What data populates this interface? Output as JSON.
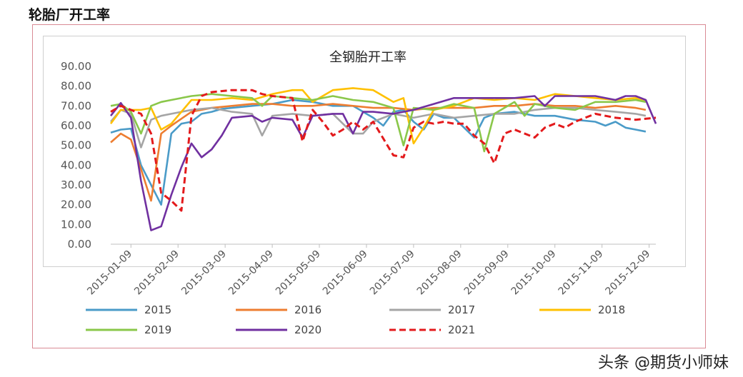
{
  "page": {
    "heading": "轮胎厂开工率",
    "watermark": "头条 @期货小师妹"
  },
  "chart_data": {
    "type": "line",
    "title": "全钢胎开工率",
    "xlabel": "",
    "ylabel": "",
    "ylim": [
      0,
      90
    ],
    "yticks": [
      "0.00",
      "10.00",
      "20.00",
      "30.00",
      "40.00",
      "50.00",
      "60.00",
      "70.00",
      "80.00",
      "90.00"
    ],
    "x_tick_labels": [
      "2015-01-09",
      "2015-02-09",
      "2015-03-09",
      "2015-04-09",
      "2015-05-09",
      "2015-06-09",
      "2015-07-09",
      "2015-08-09",
      "2015-09-09",
      "2015-10-09",
      "2015-11-09",
      "2015-12-09"
    ],
    "grid": false,
    "legend_position": "bottom",
    "series": [
      {
        "name": "2015",
        "color": "#4a9bc8",
        "dashed": false,
        "points": [
          [
            0,
            56.5
          ],
          [
            0.5,
            58
          ],
          [
            1,
            58.5
          ],
          [
            1.5,
            40
          ],
          [
            2,
            30
          ],
          [
            2.5,
            20
          ],
          [
            3,
            56
          ],
          [
            3.5,
            61
          ],
          [
            4,
            62
          ],
          [
            4.5,
            66
          ],
          [
            5,
            67
          ],
          [
            5.5,
            68.5
          ],
          [
            6,
            69
          ],
          [
            7,
            70
          ],
          [
            8,
            71
          ],
          [
            8.5,
            72
          ],
          [
            9,
            73
          ],
          [
            10,
            72
          ],
          [
            11,
            70
          ],
          [
            12,
            70
          ],
          [
            13,
            64
          ],
          [
            13.5,
            60
          ],
          [
            14,
            67
          ],
          [
            14.5,
            68
          ],
          [
            15,
            62
          ],
          [
            15.5,
            58
          ],
          [
            16,
            66
          ],
          [
            16.5,
            64
          ],
          [
            17,
            64
          ],
          [
            18,
            54
          ],
          [
            18.5,
            64
          ],
          [
            19,
            66
          ],
          [
            20,
            67
          ],
          [
            21,
            65
          ],
          [
            22,
            65
          ],
          [
            23,
            63
          ],
          [
            24,
            62
          ],
          [
            24.5,
            60
          ],
          [
            25,
            62
          ],
          [
            25.5,
            59
          ],
          [
            26,
            58
          ],
          [
            26.5,
            57
          ]
        ]
      },
      {
        "name": "2016",
        "color": "#ed7d31",
        "dashed": false,
        "points": [
          [
            0,
            51.5
          ],
          [
            0.5,
            56
          ],
          [
            1,
            53
          ],
          [
            1.5,
            38
          ],
          [
            2,
            22
          ],
          [
            2.5,
            56
          ],
          [
            3,
            60
          ],
          [
            4,
            67
          ],
          [
            5,
            69
          ],
          [
            6,
            70
          ],
          [
            7,
            71
          ],
          [
            8,
            71
          ],
          [
            9,
            70
          ],
          [
            10,
            70
          ],
          [
            11,
            71
          ],
          [
            12,
            70
          ],
          [
            13,
            69
          ],
          [
            14,
            69
          ],
          [
            15,
            68
          ],
          [
            16,
            69
          ],
          [
            17,
            69
          ],
          [
            18,
            69
          ],
          [
            19,
            70
          ],
          [
            20,
            70
          ],
          [
            21,
            71
          ],
          [
            22,
            70
          ],
          [
            23,
            70
          ],
          [
            24,
            69
          ],
          [
            25,
            70
          ],
          [
            26,
            69
          ],
          [
            26.5,
            68
          ]
        ]
      },
      {
        "name": "2017",
        "color": "#a5a5a5",
        "dashed": false,
        "points": [
          [
            0,
            62
          ],
          [
            0.5,
            68
          ],
          [
            1,
            66
          ],
          [
            1.5,
            49
          ],
          [
            2,
            63
          ],
          [
            2.5,
            65
          ],
          [
            3,
            66
          ],
          [
            4,
            68
          ],
          [
            5,
            69
          ],
          [
            6,
            67
          ],
          [
            7,
            66
          ],
          [
            7.5,
            55
          ],
          [
            8,
            65
          ],
          [
            9,
            66
          ],
          [
            10,
            65
          ],
          [
            11,
            66
          ],
          [
            12,
            56
          ],
          [
            12.5,
            56
          ],
          [
            13,
            62
          ],
          [
            14,
            66
          ],
          [
            15,
            64
          ],
          [
            16,
            66
          ],
          [
            17,
            64
          ],
          [
            18,
            65
          ],
          [
            19,
            66
          ],
          [
            20,
            66
          ],
          [
            21,
            68
          ],
          [
            22,
            69
          ],
          [
            23,
            69
          ],
          [
            24,
            68
          ],
          [
            25,
            67
          ],
          [
            26,
            66
          ],
          [
            26.5,
            65
          ]
        ]
      },
      {
        "name": "2018",
        "color": "#ffc000",
        "dashed": false,
        "points": [
          [
            0,
            61
          ],
          [
            0.5,
            68
          ],
          [
            1,
            68
          ],
          [
            1.5,
            68
          ],
          [
            2,
            69
          ],
          [
            2.5,
            58
          ],
          [
            3,
            61
          ],
          [
            4,
            73
          ],
          [
            5,
            73
          ],
          [
            6,
            74
          ],
          [
            7,
            73
          ],
          [
            8,
            76
          ],
          [
            9,
            78
          ],
          [
            9.5,
            78
          ],
          [
            10,
            72
          ],
          [
            11,
            78
          ],
          [
            12,
            79
          ],
          [
            13,
            78
          ],
          [
            14,
            72
          ],
          [
            14.5,
            74
          ],
          [
            15,
            51
          ],
          [
            15.5,
            59
          ],
          [
            16,
            68
          ],
          [
            17,
            70
          ],
          [
            18,
            74
          ],
          [
            19,
            73
          ],
          [
            20,
            74
          ],
          [
            21,
            73
          ],
          [
            22,
            76
          ],
          [
            23,
            75
          ],
          [
            24,
            74
          ],
          [
            25,
            73
          ],
          [
            26,
            74
          ],
          [
            26.5,
            72
          ]
        ]
      },
      {
        "name": "2019",
        "color": "#8ac74a",
        "dashed": false,
        "points": [
          [
            0,
            70
          ],
          [
            0.5,
            71
          ],
          [
            1,
            67
          ],
          [
            1.5,
            56
          ],
          [
            2,
            70
          ],
          [
            2.5,
            72
          ],
          [
            3,
            73
          ],
          [
            4,
            75
          ],
          [
            5,
            76
          ],
          [
            6,
            75
          ],
          [
            7,
            74
          ],
          [
            7.5,
            70
          ],
          [
            8,
            75
          ],
          [
            9,
            74
          ],
          [
            10,
            73
          ],
          [
            11,
            75
          ],
          [
            12,
            73
          ],
          [
            13,
            72
          ],
          [
            14,
            69
          ],
          [
            14.5,
            50
          ],
          [
            15,
            69
          ],
          [
            16,
            68
          ],
          [
            17,
            71
          ],
          [
            18,
            69
          ],
          [
            18.5,
            47
          ],
          [
            19,
            66
          ],
          [
            20,
            72
          ],
          [
            20.5,
            65
          ],
          [
            21,
            71
          ],
          [
            22,
            69
          ],
          [
            23,
            68
          ],
          [
            24,
            72
          ],
          [
            25,
            72
          ],
          [
            26,
            73
          ],
          [
            26.5,
            72
          ]
        ]
      },
      {
        "name": "2020",
        "color": "#7030a0",
        "dashed": false,
        "points": [
          [
            0,
            65
          ],
          [
            0.5,
            71.5
          ],
          [
            1,
            64
          ],
          [
            1.5,
            32
          ],
          [
            2,
            7
          ],
          [
            2.5,
            9
          ],
          [
            3,
            25
          ],
          [
            3.5,
            39
          ],
          [
            4,
            51
          ],
          [
            4.5,
            44
          ],
          [
            5,
            48
          ],
          [
            5.5,
            55
          ],
          [
            6,
            64
          ],
          [
            7,
            65
          ],
          [
            7.5,
            62
          ],
          [
            8,
            64
          ],
          [
            9,
            63
          ],
          [
            9.5,
            54
          ],
          [
            10,
            65
          ],
          [
            11,
            66
          ],
          [
            11.5,
            66
          ],
          [
            12,
            56
          ],
          [
            12.5,
            67
          ],
          [
            13,
            67
          ],
          [
            14,
            66
          ],
          [
            15,
            68
          ],
          [
            16,
            71
          ],
          [
            17,
            74
          ],
          [
            18,
            74
          ],
          [
            19,
            74
          ],
          [
            20,
            74
          ],
          [
            21,
            75
          ],
          [
            21.5,
            70
          ],
          [
            22,
            75
          ],
          [
            23,
            75
          ],
          [
            24,
            75
          ],
          [
            25,
            73
          ],
          [
            25.5,
            75
          ],
          [
            26,
            75
          ],
          [
            26.5,
            73
          ],
          [
            27,
            61
          ]
        ]
      },
      {
        "name": "2021",
        "color": "#e31a1c",
        "dashed": true,
        "points": [
          [
            0,
            67
          ],
          [
            0.5,
            70
          ],
          [
            1,
            68
          ],
          [
            1.5,
            66
          ],
          [
            2,
            56
          ],
          [
            2.5,
            26
          ],
          [
            3,
            22
          ],
          [
            3.5,
            17
          ],
          [
            4,
            65
          ],
          [
            4.5,
            75
          ],
          [
            5,
            77
          ],
          [
            6,
            78
          ],
          [
            7,
            78
          ],
          [
            7.5,
            76
          ],
          [
            8,
            75
          ],
          [
            9,
            74
          ],
          [
            9.5,
            52
          ],
          [
            10,
            68
          ],
          [
            10.5,
            62
          ],
          [
            11,
            55
          ],
          [
            11.5,
            58
          ],
          [
            12,
            62
          ],
          [
            12.5,
            58
          ],
          [
            13,
            62
          ],
          [
            14,
            45
          ],
          [
            14.5,
            44
          ],
          [
            15,
            59
          ],
          [
            15.5,
            62
          ],
          [
            16,
            61
          ],
          [
            16.5,
            62
          ],
          [
            17,
            61
          ],
          [
            17.5,
            61
          ],
          [
            18,
            55
          ],
          [
            18.5,
            51
          ],
          [
            19,
            41
          ],
          [
            19.5,
            56
          ],
          [
            20,
            58
          ],
          [
            21,
            54
          ],
          [
            21.5,
            59
          ],
          [
            22,
            61
          ],
          [
            22.5,
            59
          ],
          [
            23,
            62
          ],
          [
            24,
            66
          ],
          [
            24.5,
            65
          ],
          [
            25,
            64
          ],
          [
            26,
            63
          ],
          [
            27,
            64
          ]
        ]
      }
    ]
  }
}
